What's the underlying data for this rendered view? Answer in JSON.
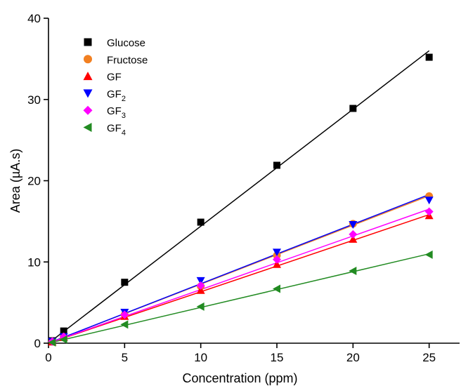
{
  "chart_data": {
    "type": "scatter",
    "title": "",
    "xlabel": "Concentration (ppm)",
    "ylabel": "Area (µA.s)",
    "xlim": [
      0,
      27
    ],
    "ylim": [
      0,
      40
    ],
    "xticks": [
      0,
      5,
      10,
      15,
      20,
      25
    ],
    "yticks": [
      0,
      10,
      20,
      30,
      40
    ],
    "x_tick_labels": [
      "0",
      "5",
      "10",
      "15",
      "20",
      "25"
    ],
    "y_tick_labels": [
      "0",
      "10",
      "20",
      "30",
      "40"
    ],
    "grid": false,
    "legend_position": "top-left",
    "x": [
      0.25,
      1,
      5,
      10,
      15,
      20,
      25
    ],
    "series": [
      {
        "name": "Glucose",
        "base": "Glucose",
        "sub": "",
        "marker": "square",
        "color": "#000000",
        "values": [
          0.3,
          1.5,
          7.5,
          14.9,
          21.9,
          28.9,
          35.2
        ],
        "fit": {
          "slope": 1.44,
          "intercept": 0.0
        }
      },
      {
        "name": "Fructose",
        "base": "Fructose",
        "sub": "",
        "marker": "circle",
        "color": "#f28021",
        "values": [
          0.2,
          0.8,
          3.5,
          7.0,
          10.8,
          14.7,
          18.1
        ],
        "fit": {
          "slope": 0.726,
          "intercept": 0.0
        }
      },
      {
        "name": "GF",
        "base": "GF",
        "sub": "",
        "marker": "triangle-up",
        "color": "#ff0000",
        "values": [
          0.15,
          0.7,
          3.3,
          6.5,
          9.7,
          12.8,
          15.7
        ],
        "fit": {
          "slope": 0.633,
          "intercept": 0.0
        }
      },
      {
        "name": "GF2",
        "base": "GF",
        "sub": "2",
        "marker": "triangle-down",
        "color": "#0000ff",
        "values": [
          0.2,
          0.8,
          3.8,
          7.7,
          11.2,
          14.6,
          17.6
        ],
        "fit": {
          "slope": 0.732,
          "intercept": 0.0
        }
      },
      {
        "name": "GF3",
        "base": "GF",
        "sub": "3",
        "marker": "diamond",
        "color": "#ff00ff",
        "values": [
          0.2,
          0.8,
          3.5,
          7.1,
          10.3,
          13.4,
          16.2
        ],
        "fit": {
          "slope": 0.66,
          "intercept": 0.0
        }
      },
      {
        "name": "GF4",
        "base": "GF",
        "sub": "4",
        "marker": "triangle-left",
        "color": "#228b22",
        "values": [
          0.1,
          0.45,
          2.3,
          4.5,
          6.7,
          8.9,
          10.9
        ],
        "fit": {
          "slope": 0.44,
          "intercept": 0.0
        }
      }
    ]
  }
}
